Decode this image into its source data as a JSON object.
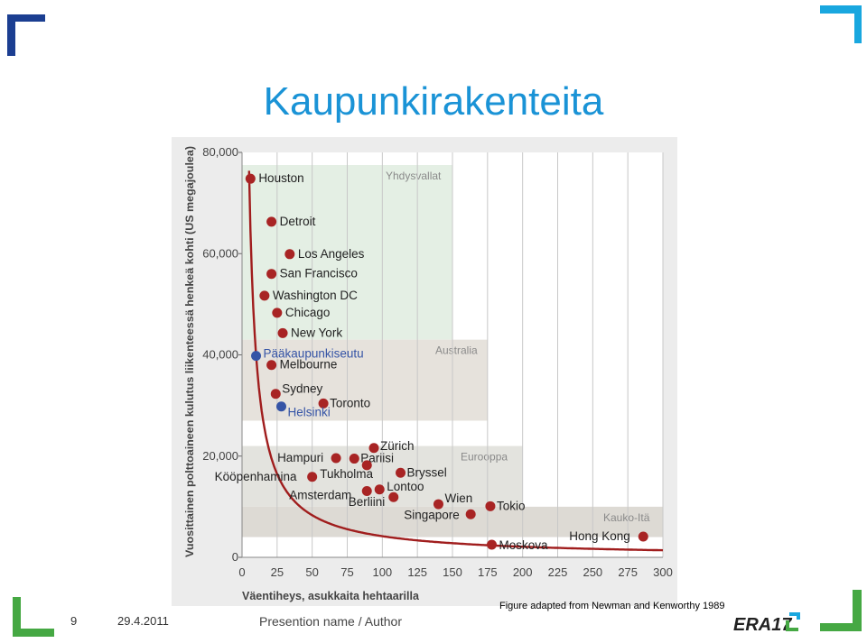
{
  "slide": {
    "title": "Kaupunkirakenteita",
    "caption": "Figure adapted from Newman and Kenworthy 1989",
    "page_number": "9",
    "date": "29.4.2011",
    "presentation": "Presention name / Author",
    "logo_text": "ERA17"
  },
  "colors": {
    "title": "#1a93d6",
    "corner_blue": "#1b3e91",
    "corner_cyan": "#19a7df",
    "corner_green": "#45a843",
    "curve": "#a01d1d",
    "us_point": "#a82424",
    "highlight_point": "#3554a6",
    "band_us": "#e4efe4",
    "band_australia": "#e6e2dc",
    "band_europe": "#e3e3de",
    "band_asia": "#dddad4"
  },
  "chart_data": {
    "type": "scatter",
    "xlabel": "Väentiheys, asukkaita hehtaarilla",
    "ylabel": "Vuosittainen polttoaineen kulutus liikenteessä henkeä kohti (US megajoulea)",
    "xlim": [
      0,
      300
    ],
    "ylim": [
      0,
      80000
    ],
    "x_ticks": [
      "0",
      "25",
      "50",
      "75",
      "100",
      "125",
      "150",
      "175",
      "200",
      "225",
      "250",
      "275",
      "300"
    ],
    "y_ticks": [
      "0",
      "20,000",
      "40,000",
      "60,000",
      "80,000"
    ],
    "grid": true,
    "regions": [
      {
        "name": "Yhdysvallat",
        "x": [
          0,
          150
        ],
        "y": [
          43000,
          77500
        ]
      },
      {
        "name": "Australia",
        "x": [
          0,
          175
        ],
        "y": [
          27000,
          43000
        ]
      },
      {
        "name": "Eurooppa",
        "x": [
          0,
          200
        ],
        "y": [
          10000,
          22000
        ]
      },
      {
        "name": "Kauko-Itä",
        "x": [
          0,
          300
        ],
        "y": [
          4000,
          10000
        ]
      }
    ],
    "points": [
      {
        "label": "Houston",
        "x": 6,
        "y": 74800,
        "group": "main"
      },
      {
        "label": "Detroit",
        "x": 21,
        "y": 66300,
        "group": "main"
      },
      {
        "label": "Los Angeles",
        "x": 34,
        "y": 59900,
        "group": "main"
      },
      {
        "label": "San Francisco",
        "x": 21,
        "y": 56000,
        "group": "main"
      },
      {
        "label": "Washington DC",
        "x": 16,
        "y": 51700,
        "group": "main"
      },
      {
        "label": "Chicago",
        "x": 25,
        "y": 48300,
        "group": "main"
      },
      {
        "label": "New York",
        "x": 29,
        "y": 44300,
        "group": "main"
      },
      {
        "label": "Pääkaupunkiseutu",
        "x": 10,
        "y": 39800,
        "group": "highlight"
      },
      {
        "label": "Melbourne",
        "x": 21,
        "y": 38000,
        "group": "main"
      },
      {
        "label": "Sydney",
        "x": 24,
        "y": 32300,
        "group": "main"
      },
      {
        "label": "Toronto",
        "x": 58,
        "y": 30400,
        "group": "main"
      },
      {
        "label": "Helsinki",
        "x": 28,
        "y": 29800,
        "group": "highlight"
      },
      {
        "label": "Zürich",
        "x": 94,
        "y": 21600,
        "group": "main"
      },
      {
        "label": "Hampuri",
        "x": 67,
        "y": 19600,
        "group": "main"
      },
      {
        "label": "Pariisi",
        "x": 80,
        "y": 19500,
        "group": "main"
      },
      {
        "label": "Kööpenhamina",
        "x": 50,
        "y": 15900,
        "group": "main"
      },
      {
        "label": "Tukholma",
        "x": 89,
        "y": 18200,
        "group": "main"
      },
      {
        "label": "Bryssel",
        "x": 113,
        "y": 16700,
        "group": "main"
      },
      {
        "label": "Amsterdam",
        "x": 89,
        "y": 13100,
        "group": "main"
      },
      {
        "label": "Lontoo",
        "x": 98,
        "y": 13400,
        "group": "main"
      },
      {
        "label": "Berliini",
        "x": 108,
        "y": 11900,
        "group": "main"
      },
      {
        "label": "Wien",
        "x": 140,
        "y": 10500,
        "group": "main"
      },
      {
        "label": "Tokio",
        "x": 177,
        "y": 10100,
        "group": "main"
      },
      {
        "label": "Singapore",
        "x": 163,
        "y": 8500,
        "group": "main"
      },
      {
        "label": "Moskova",
        "x": 178,
        "y": 2500,
        "group": "main"
      },
      {
        "label": "Hong Kong",
        "x": 286,
        "y": 4100,
        "group": "main"
      }
    ]
  }
}
